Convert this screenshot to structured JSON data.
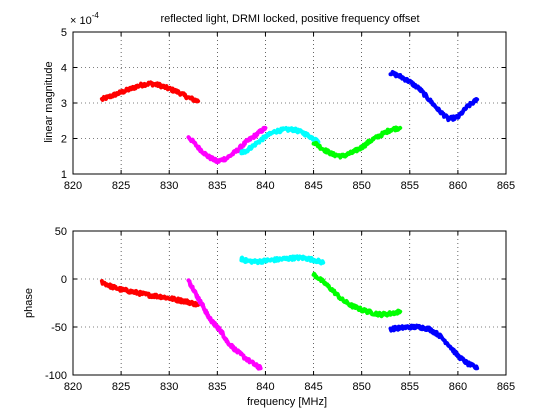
{
  "chart_data": [
    {
      "type": "line",
      "title": "reflected light, DRMI locked, positive frequency offset",
      "xlabel": "",
      "ylabel": "linear magnitude",
      "y_multiplier": "× 10",
      "y_exponent": "-4",
      "xlim": [
        820,
        865
      ],
      "ylim": [
        1,
        5
      ],
      "xticks": [
        "820",
        "825",
        "830",
        "835",
        "840",
        "845",
        "850",
        "855",
        "860",
        "865"
      ],
      "yticks": [
        "1",
        "2",
        "3",
        "4",
        "5"
      ],
      "grid": true,
      "legend": "none",
      "series": [
        {
          "color": "#ff0000",
          "x": [
            823,
            824,
            825,
            826,
            827,
            828,
            829,
            830,
            831,
            832,
            833
          ],
          "y": [
            3.1,
            3.2,
            3.3,
            3.4,
            3.5,
            3.55,
            3.5,
            3.4,
            3.3,
            3.15,
            3.05
          ]
        },
        {
          "color": "#ff00ff",
          "x": [
            832,
            833,
            834,
            835,
            836,
            837,
            838,
            839,
            840
          ],
          "y": [
            2.05,
            1.75,
            1.5,
            1.35,
            1.45,
            1.65,
            1.9,
            2.1,
            2.3
          ]
        },
        {
          "color": "#00ffff",
          "x": [
            837.5,
            838,
            839,
            840,
            841,
            842,
            843,
            844,
            845,
            845.5
          ],
          "y": [
            1.6,
            1.65,
            1.85,
            2.05,
            2.2,
            2.25,
            2.25,
            2.15,
            2.0,
            1.9
          ]
        },
        {
          "color": "#00ff00",
          "x": [
            845,
            846,
            847,
            848,
            849,
            850,
            851,
            852,
            853,
            854
          ],
          "y": [
            1.9,
            1.7,
            1.55,
            1.5,
            1.6,
            1.75,
            1.95,
            2.1,
            2.25,
            2.3
          ]
        },
        {
          "color": "#0000ff",
          "x": [
            853,
            854,
            855,
            856,
            857,
            858,
            859,
            860,
            861,
            862
          ],
          "y": [
            3.85,
            3.75,
            3.6,
            3.4,
            3.1,
            2.8,
            2.55,
            2.6,
            2.9,
            3.1
          ]
        }
      ]
    },
    {
      "type": "line",
      "title": "",
      "xlabel": "frequency [MHz]",
      "ylabel": "phase",
      "xlim": [
        820,
        865
      ],
      "ylim": [
        -100,
        50
      ],
      "xticks": [
        "820",
        "825",
        "830",
        "835",
        "840",
        "845",
        "850",
        "855",
        "860",
        "865"
      ],
      "yticks": [
        "-100",
        "-50",
        "0",
        "50"
      ],
      "grid": true,
      "legend": "none",
      "series": [
        {
          "color": "#ff0000",
          "x": [
            823,
            824,
            825,
            826,
            827,
            828,
            829,
            830,
            831,
            832,
            833
          ],
          "y": [
            -3,
            -8,
            -11,
            -13,
            -15,
            -17,
            -18,
            -20,
            -22,
            -24,
            -27
          ]
        },
        {
          "color": "#ff00ff",
          "x": [
            832,
            832.5,
            833,
            833.5,
            834,
            834.5,
            835,
            835.5,
            836,
            837,
            838,
            839,
            839.5
          ],
          "y": [
            -2,
            -10,
            -20,
            -28,
            -38,
            -45,
            -50,
            -56,
            -65,
            -75,
            -83,
            -90,
            -93
          ]
        },
        {
          "color": "#00ffff",
          "x": [
            837.5,
            838,
            839,
            840,
            841,
            842,
            843,
            844,
            845,
            846
          ],
          "y": [
            21,
            19,
            18,
            19,
            20,
            21,
            22,
            22,
            20,
            17
          ]
        },
        {
          "color": "#00ff00",
          "x": [
            845,
            846,
            847,
            848,
            849,
            850,
            851,
            852,
            853,
            854
          ],
          "y": [
            5,
            -3,
            -12,
            -22,
            -28,
            -32,
            -35,
            -37,
            -36,
            -34
          ]
        },
        {
          "color": "#0000ff",
          "x": [
            853,
            854,
            855,
            856,
            857,
            858,
            859,
            860,
            861,
            862
          ],
          "y": [
            -52,
            -51,
            -50,
            -50,
            -52,
            -58,
            -68,
            -80,
            -88,
            -93
          ]
        }
      ]
    }
  ]
}
